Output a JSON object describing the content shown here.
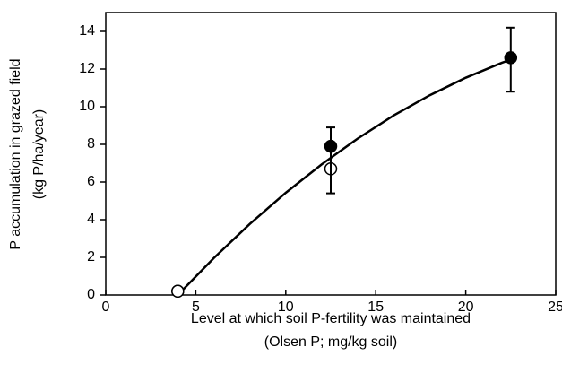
{
  "chart_data": {
    "type": "scatter",
    "x_label": [
      "Level at which soil P-fertility was maintained",
      "(Olsen P; mg/kg soil)"
    ],
    "y_label": [
      "P accumulation in grazed field",
      "(kg P/ha/year)"
    ],
    "xlim": [
      0,
      25
    ],
    "xticks": [
      0,
      5,
      10,
      15,
      20,
      25
    ],
    "ylim": [
      0,
      15
    ],
    "yticks": [
      0,
      2,
      4,
      6,
      8,
      10,
      12,
      14
    ],
    "series": [
      {
        "marker": "filled",
        "color": "#000000",
        "x": [
          4,
          12.5,
          22.5
        ],
        "values": [
          0.2,
          7.9,
          12.6
        ],
        "error_low": [
          null,
          5.4,
          10.8
        ],
        "error_high": [
          null,
          8.9,
          14.2
        ]
      },
      {
        "marker": "open",
        "color": "#000000",
        "x": [
          4,
          12.5
        ],
        "values": [
          0.2,
          6.7
        ]
      }
    ],
    "fit_line": {
      "color": "#000000",
      "x": [
        4,
        6,
        8,
        10,
        12,
        14,
        16,
        18,
        20,
        22,
        22.5
      ],
      "values": [
        0,
        1.96,
        3.77,
        5.43,
        6.94,
        8.31,
        9.54,
        10.61,
        11.54,
        12.33,
        12.5
      ]
    }
  }
}
